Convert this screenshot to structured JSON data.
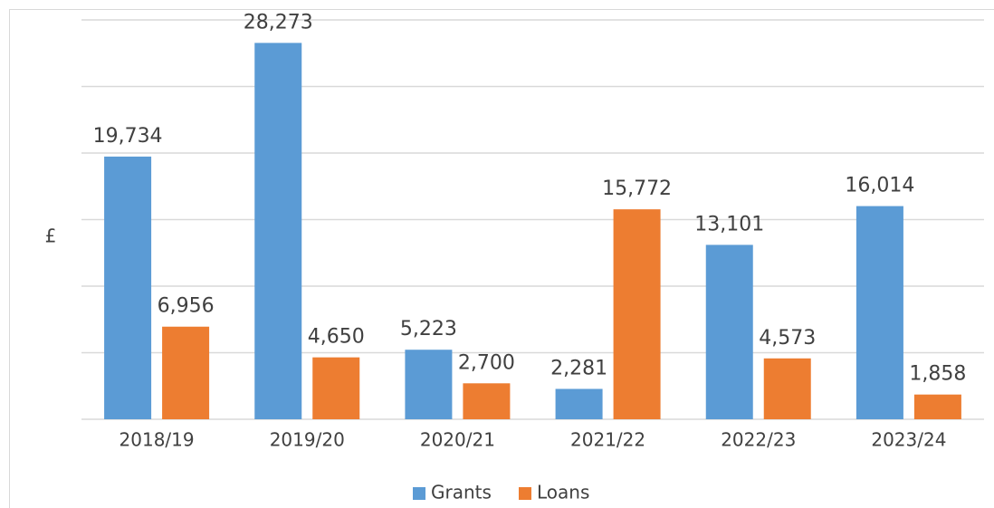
{
  "chart_data": {
    "type": "bar",
    "ylabel": "£",
    "categories": [
      "2018/19",
      "2019/20",
      "2020/21",
      "2021/22",
      "2022/23",
      "2023/24"
    ],
    "series": [
      {
        "name": "Grants",
        "color": "#5b9bd5",
        "values": [
          19734,
          28273,
          5223,
          2281,
          13101,
          16014
        ],
        "value_labels": [
          "19,734",
          "28,273",
          "5,223",
          "2,281",
          "13,101",
          "16,014"
        ]
      },
      {
        "name": "Loans",
        "color": "#ed7d31",
        "values": [
          6956,
          4650,
          2700,
          15772,
          4573,
          1858
        ],
        "value_labels": [
          "6,956",
          "4,650",
          "2,700",
          "15,772",
          "4,573",
          "1,858"
        ]
      }
    ],
    "ylim": [
      0,
      30000
    ],
    "yticks": [
      0,
      5000,
      10000,
      15000,
      20000,
      25000,
      30000
    ],
    "grid": true,
    "legend": "bottom"
  }
}
